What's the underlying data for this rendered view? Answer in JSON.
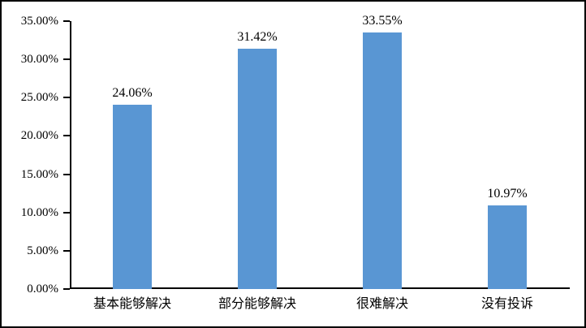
{
  "chart_data": {
    "type": "bar",
    "title": "",
    "categories": [
      "基本能够解决",
      "部分能够解决",
      "很难解决",
      "没有投诉"
    ],
    "values": [
      24.06,
      31.42,
      33.55,
      10.97
    ],
    "data_labels": [
      "24.06%",
      "31.42%",
      "33.55%",
      "10.97%"
    ],
    "y_ticks": [
      "0.00%",
      "5.00%",
      "10.00%",
      "15.00%",
      "20.00%",
      "25.00%",
      "30.00%",
      "35.00%"
    ],
    "y_tick_values": [
      0,
      5,
      10,
      15,
      20,
      25,
      30,
      35
    ],
    "ylim": [
      0,
      35
    ],
    "xlabel": "",
    "ylabel": "",
    "grid": false,
    "legend": "none",
    "colors": {
      "bar": "#5996D3",
      "axis": "#000000",
      "text": "#000000",
      "background": "#FFFFFF",
      "frame_border": "#000000"
    }
  }
}
